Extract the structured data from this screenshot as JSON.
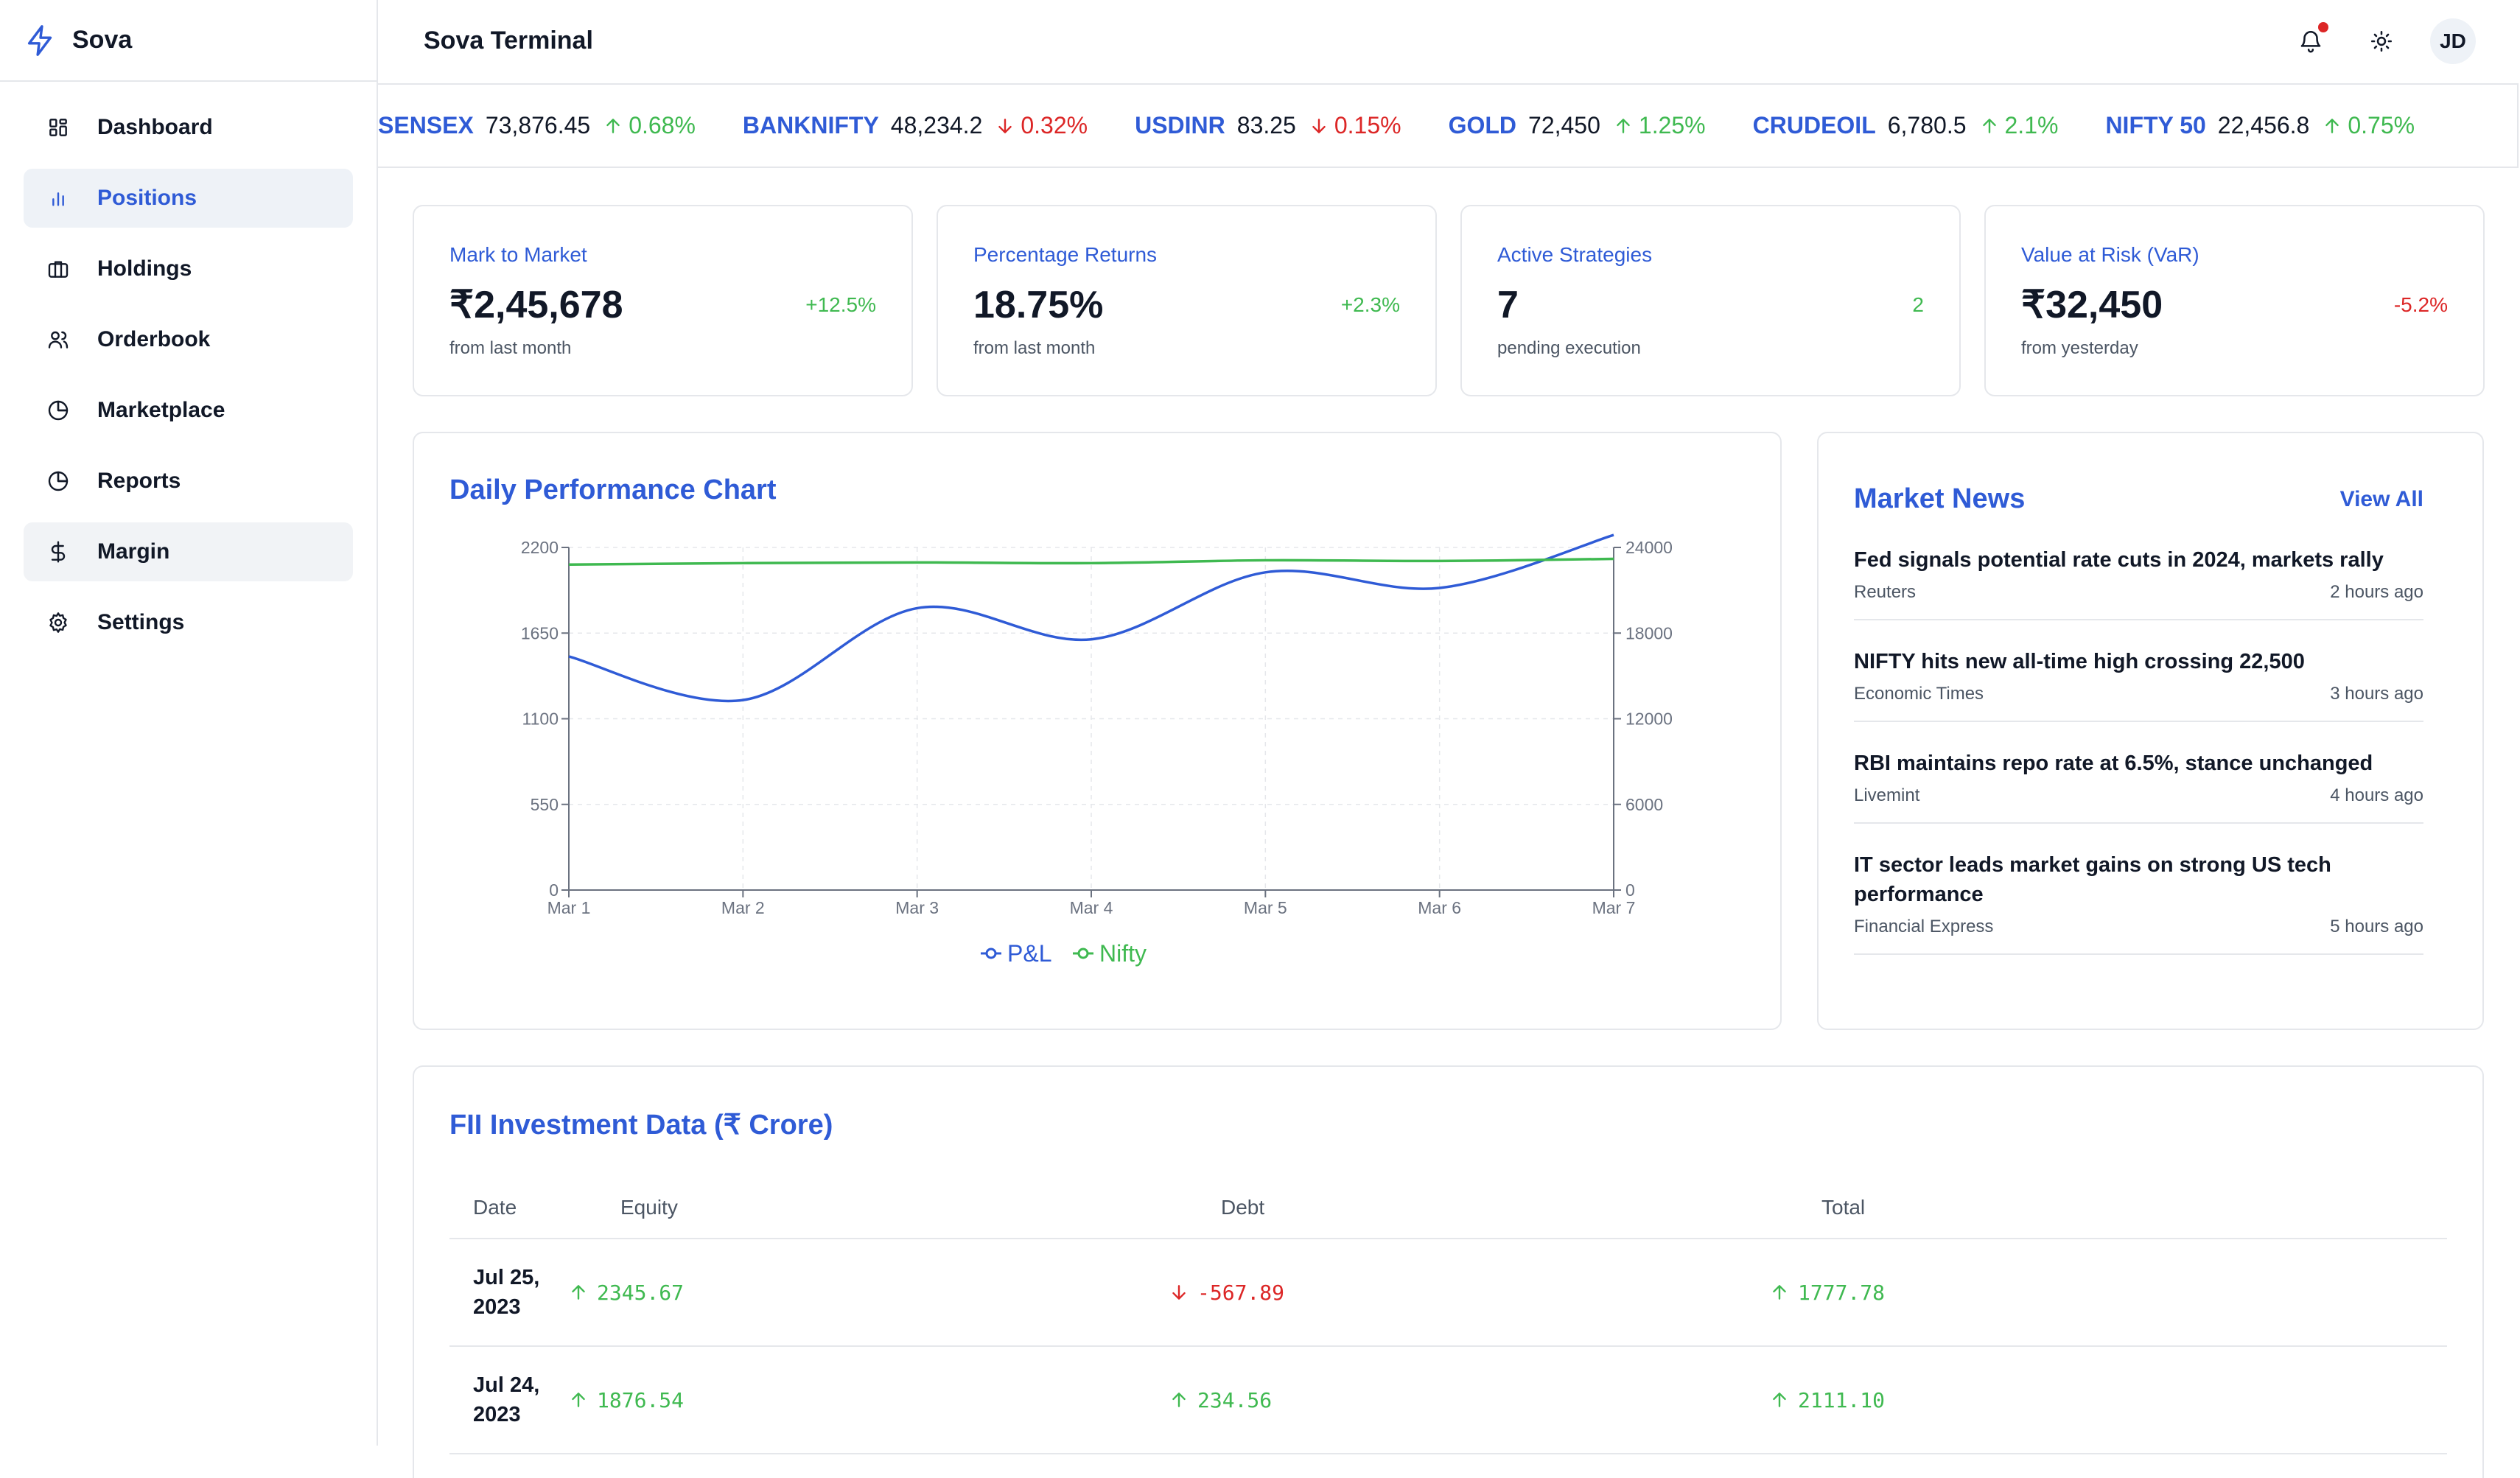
{
  "app": {
    "name": "Sova",
    "title": "Sova Terminal"
  },
  "sidebar": {
    "items": [
      {
        "label": "Dashboard",
        "icon": "dashboard-icon"
      },
      {
        "label": "Positions",
        "icon": "bar-chart-icon"
      },
      {
        "label": "Holdings",
        "icon": "briefcase-icon"
      },
      {
        "label": "Orderbook",
        "icon": "users-icon"
      },
      {
        "label": "Marketplace",
        "icon": "pie-chart-icon"
      },
      {
        "label": "Reports",
        "icon": "pie-chart-icon"
      },
      {
        "label": "Margin",
        "icon": "dollar-icon"
      },
      {
        "label": "Settings",
        "icon": "gear-icon"
      }
    ],
    "active": "Positions"
  },
  "header": {
    "avatar_initials": "JD",
    "has_notification": true
  },
  "ticker": [
    {
      "symbol": "SENSEX",
      "value": "73,876.45",
      "change": "0.68%",
      "direction": "up"
    },
    {
      "symbol": "BANKNIFTY",
      "value": "48,234.2",
      "change": "0.32%",
      "direction": "down"
    },
    {
      "symbol": "USDINR",
      "value": "83.25",
      "change": "0.15%",
      "direction": "down"
    },
    {
      "symbol": "GOLD",
      "value": "72,450",
      "change": "1.25%",
      "direction": "up"
    },
    {
      "symbol": "CRUDEOIL",
      "value": "6,780.5",
      "change": "2.1%",
      "direction": "up"
    },
    {
      "symbol": "NIFTY 50",
      "value": "22,456.8",
      "change": "0.75%",
      "direction": "up"
    }
  ],
  "kpis": [
    {
      "label": "Mark to Market",
      "value": "₹2,45,678",
      "change": "+12.5%",
      "sub": "from last month",
      "tone": "up"
    },
    {
      "label": "Percentage Returns",
      "value": "18.75%",
      "change": "+2.3%",
      "sub": "from last month",
      "tone": "up"
    },
    {
      "label": "Active Strategies",
      "value": "7",
      "change": "2",
      "sub": "pending execution",
      "tone": "up"
    },
    {
      "label": "Value at Risk (VaR)",
      "value": "₹32,450",
      "change": "-5.2%",
      "sub": "from yesterday",
      "tone": "down"
    }
  ],
  "chart_card": {
    "title": "Daily Performance Chart"
  },
  "chart_data": {
    "type": "line",
    "title": "Daily Performance Chart",
    "x": [
      "Mar 1",
      "Mar 2",
      "Mar 3",
      "Mar 4",
      "Mar 5",
      "Mar 6",
      "Mar 7"
    ],
    "series": [
      {
        "name": "P&L",
        "axis": "left",
        "color": "#2f5bd6",
        "values": [
          1500,
          1220,
          1810,
          1610,
          2040,
          1940,
          2280
        ]
      },
      {
        "name": "Nifty",
        "axis": "right",
        "color": "#3fb950",
        "values": [
          22800,
          22900,
          22950,
          22900,
          23100,
          23050,
          23200
        ]
      }
    ],
    "ylim_left": [
      0,
      2200
    ],
    "yticks_left": [
      0,
      550,
      1100,
      1650,
      2200
    ],
    "ylim_right": [
      0,
      24000
    ],
    "yticks_right": [
      0,
      6000,
      12000,
      18000,
      24000
    ],
    "grid": true,
    "legend": "bottom-center"
  },
  "news": {
    "title": "Market News",
    "view_all": "View All",
    "items": [
      {
        "headline": "Fed signals potential rate cuts in 2024, markets rally",
        "source": "Reuters",
        "time": "2 hours ago"
      },
      {
        "headline": "NIFTY hits new all-time high crossing 22,500",
        "source": "Economic Times",
        "time": "3 hours ago"
      },
      {
        "headline": "RBI maintains repo rate at 6.5%, stance unchanged",
        "source": "Livemint",
        "time": "4 hours ago"
      },
      {
        "headline": "IT sector leads market gains on strong US tech performance",
        "source": "Financial Express",
        "time": "5 hours ago"
      }
    ]
  },
  "fii": {
    "title": "FII Investment Data (₹ Crore)",
    "columns": [
      "Date",
      "Equity",
      "Debt",
      "Total"
    ],
    "rows": [
      {
        "date": "Jul 25, 2023",
        "equity": "2345.67",
        "equity_dir": "up",
        "debt": "-567.89",
        "debt_dir": "down",
        "total": "1777.78",
        "total_dir": "up"
      },
      {
        "date": "Jul 24, 2023",
        "equity": "1876.54",
        "equity_dir": "up",
        "debt": "234.56",
        "debt_dir": "up",
        "total": "2111.10",
        "total_dir": "up"
      }
    ]
  },
  "colors": {
    "accent": "#2f5bd6",
    "up": "#3fb950",
    "down": "#dc2626",
    "border": "#e5e7eb"
  }
}
